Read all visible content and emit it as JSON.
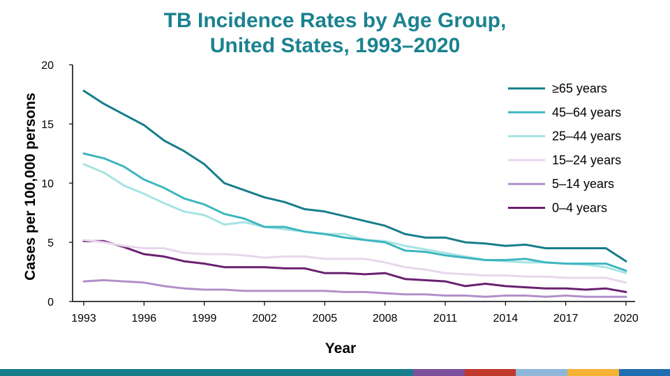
{
  "title_line1": "TB Incidence Rates by Age Group,",
  "title_line2": "United States, 1993–2020",
  "chart_data": {
    "type": "line",
    "title": "TB Incidence Rates by Age Group, United States, 1993–2020",
    "xlabel": "Year",
    "ylabel": "Cases per 100,000 persons",
    "xlim": [
      1993,
      2020
    ],
    "ylim": [
      0,
      20
    ],
    "x_ticks": [
      1993,
      1996,
      1999,
      2002,
      2005,
      2008,
      2011,
      2014,
      2017,
      2020
    ],
    "y_ticks": [
      0,
      5,
      10,
      15,
      20
    ],
    "legend_position": "top-right",
    "x": [
      1993,
      1994,
      1995,
      1996,
      1997,
      1998,
      1999,
      2000,
      2001,
      2002,
      2003,
      2004,
      2005,
      2006,
      2007,
      2008,
      2009,
      2010,
      2011,
      2012,
      2013,
      2014,
      2015,
      2016,
      2017,
      2018,
      2019,
      2020
    ],
    "series": [
      {
        "name": "≥65 years",
        "color": "#167d8a",
        "values": [
          17.8,
          16.7,
          15.8,
          14.9,
          13.6,
          12.7,
          11.6,
          10.0,
          9.4,
          8.8,
          8.4,
          7.8,
          7.6,
          7.2,
          6.8,
          6.4,
          5.7,
          5.4,
          5.4,
          5.0,
          4.9,
          4.7,
          4.8,
          4.5,
          4.5,
          4.5,
          4.5,
          3.4
        ]
      },
      {
        "name": "45–64 years",
        "color": "#3cb6bf",
        "values": [
          12.5,
          12.1,
          11.4,
          10.3,
          9.6,
          8.7,
          8.2,
          7.4,
          7.0,
          6.3,
          6.3,
          5.9,
          5.7,
          5.4,
          5.2,
          5.0,
          4.3,
          4.2,
          3.9,
          3.7,
          3.5,
          3.5,
          3.6,
          3.3,
          3.2,
          3.2,
          3.2,
          2.6
        ]
      },
      {
        "name": "25–44 years",
        "color": "#a6e3e3",
        "values": [
          11.6,
          10.9,
          9.8,
          9.1,
          8.3,
          7.6,
          7.3,
          6.5,
          6.7,
          6.3,
          6.1,
          5.9,
          5.7,
          5.7,
          5.2,
          5.1,
          4.7,
          4.4,
          4.1,
          3.8,
          3.5,
          3.4,
          3.3,
          3.3,
          3.2,
          3.1,
          2.9,
          2.4
        ]
      },
      {
        "name": "15–24 years",
        "color": "#e7d6ec",
        "values": [
          5.2,
          5.0,
          4.7,
          4.5,
          4.5,
          4.1,
          4.0,
          4.0,
          3.9,
          3.7,
          3.8,
          3.8,
          3.6,
          3.6,
          3.6,
          3.3,
          2.9,
          2.7,
          2.4,
          2.3,
          2.2,
          2.2,
          2.1,
          2.1,
          2.0,
          2.0,
          2.0,
          1.6
        ]
      },
      {
        "name": "5–14 years",
        "color": "#b38fc9",
        "values": [
          1.7,
          1.8,
          1.7,
          1.6,
          1.3,
          1.1,
          1.0,
          1.0,
          0.9,
          0.9,
          0.9,
          0.9,
          0.9,
          0.8,
          0.8,
          0.7,
          0.6,
          0.6,
          0.5,
          0.5,
          0.4,
          0.5,
          0.5,
          0.4,
          0.5,
          0.4,
          0.4,
          0.4
        ]
      },
      {
        "name": "0–4 years",
        "color": "#6a2070",
        "values": [
          5.1,
          5.1,
          4.6,
          4.0,
          3.8,
          3.4,
          3.2,
          2.9,
          2.9,
          2.9,
          2.8,
          2.8,
          2.4,
          2.4,
          2.3,
          2.4,
          1.9,
          1.8,
          1.7,
          1.3,
          1.5,
          1.3,
          1.2,
          1.1,
          1.1,
          1.0,
          1.1,
          0.8
        ]
      }
    ]
  },
  "footer_colors": [
    "#167d8a",
    "#7d4f9c",
    "#c0392b",
    "#8db6d9",
    "#f5b335",
    "#1f6fb0"
  ]
}
